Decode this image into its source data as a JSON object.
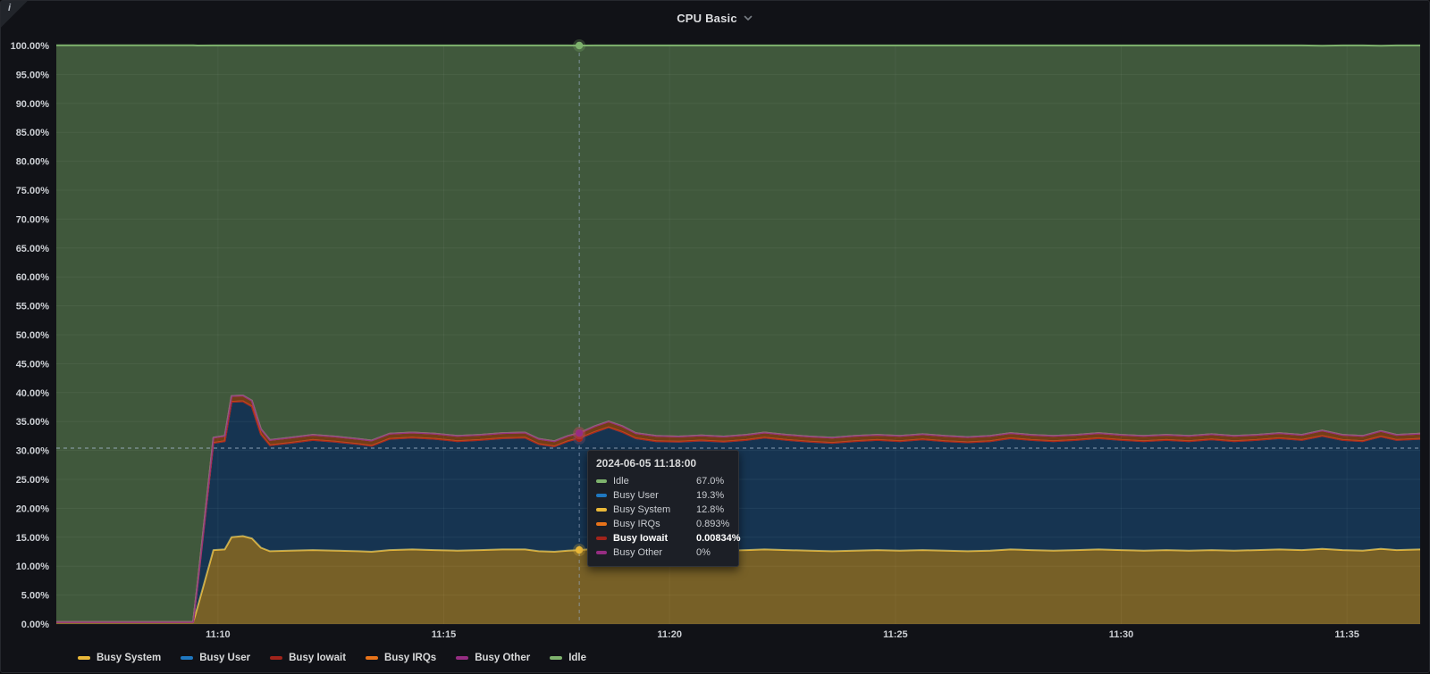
{
  "panel": {
    "title": "CPU Basic",
    "info_icon": "i"
  },
  "tooltip": {
    "timestamp": "2024-06-05 11:18:00",
    "rows": [
      {
        "label": "Idle",
        "value": "67.0%",
        "color": "#7EB26D",
        "bold": false
      },
      {
        "label": "Busy User",
        "value": "19.3%",
        "color": "#1F78C1",
        "bold": false
      },
      {
        "label": "Busy System",
        "value": "12.8%",
        "color": "#EAB839",
        "bold": false
      },
      {
        "label": "Busy IRQs",
        "value": "0.893%",
        "color": "#E8731A",
        "bold": false
      },
      {
        "label": "Busy Iowait",
        "value": "0.00834%",
        "color": "#A1241B",
        "bold": true
      },
      {
        "label": "Busy Other",
        "value": "0%",
        "color": "#962D82",
        "bold": false
      }
    ]
  },
  "legend": {
    "items": [
      {
        "label": "Busy System",
        "color": "#EAB839"
      },
      {
        "label": "Busy User",
        "color": "#1F78C1"
      },
      {
        "label": "Busy Iowait",
        "color": "#A1241B"
      },
      {
        "label": "Busy IRQs",
        "color": "#E8731A"
      },
      {
        "label": "Busy Other",
        "color": "#962D82"
      },
      {
        "label": "Idle",
        "color": "#7EB26D"
      }
    ]
  },
  "chart_data": {
    "type": "area",
    "stacked": true,
    "unit": "percent",
    "ylim": [
      0,
      100
    ],
    "grid": true,
    "y_ticks": [
      "0.00%",
      "5.00%",
      "10.00%",
      "15.00%",
      "20.00%",
      "25.00%",
      "30.00%",
      "35.00%",
      "40.00%",
      "45.00%",
      "50.00%",
      "55.00%",
      "60.00%",
      "65.00%",
      "70.00%",
      "75.00%",
      "80.00%",
      "85.00%",
      "90.00%",
      "95.00%",
      "100.00%"
    ],
    "x_ticks": [
      {
        "label": "11:10",
        "minutes": 10
      },
      {
        "label": "11:15",
        "minutes": 15
      },
      {
        "label": "11:20",
        "minutes": 20
      },
      {
        "label": "11:25",
        "minutes": 25
      },
      {
        "label": "11:30",
        "minutes": 30
      },
      {
        "label": "11:35",
        "minutes": 35
      }
    ],
    "x_range_minutes": [
      6.42,
      36.62
    ],
    "x": [
      6.42,
      9.45,
      9.55,
      9.9,
      10.15,
      10.3,
      10.55,
      10.75,
      10.95,
      11.15,
      11.6,
      12.1,
      12.6,
      13.1,
      13.4,
      13.8,
      14.3,
      14.8,
      15.3,
      15.8,
      16.3,
      16.8,
      17.1,
      17.45,
      17.75,
      18.0,
      18.35,
      18.65,
      18.95,
      19.25,
      19.7,
      20.2,
      20.7,
      21.2,
      21.7,
      22.1,
      22.6,
      23.1,
      23.6,
      24.1,
      24.6,
      25.1,
      25.6,
      26.1,
      26.6,
      27.1,
      27.55,
      28.0,
      28.5,
      29.0,
      29.5,
      30.0,
      30.5,
      31.0,
      31.5,
      32.0,
      32.5,
      33.0,
      33.5,
      34.0,
      34.45,
      34.9,
      35.35,
      35.75,
      36.1,
      36.62
    ],
    "series": [
      {
        "name": "Busy System",
        "color": "#EAB839",
        "fill_opacity": 0.47,
        "values": [
          0.3,
          0.3,
          3,
          12.8,
          12.9,
          15.0,
          15.2,
          14.8,
          13.2,
          12.6,
          12.7,
          12.8,
          12.7,
          12.6,
          12.5,
          12.8,
          12.9,
          12.8,
          12.7,
          12.8,
          12.9,
          12.9,
          12.6,
          12.5,
          12.7,
          12.8,
          13.0,
          13.2,
          13.0,
          12.8,
          12.7,
          12.7,
          12.8,
          12.7,
          12.8,
          12.9,
          12.8,
          12.7,
          12.6,
          12.7,
          12.8,
          12.7,
          12.8,
          12.7,
          12.6,
          12.7,
          12.9,
          12.8,
          12.7,
          12.8,
          12.9,
          12.8,
          12.7,
          12.8,
          12.7,
          12.8,
          12.7,
          12.8,
          12.9,
          12.8,
          13.0,
          12.8,
          12.7,
          13.0,
          12.8,
          12.9
        ]
      },
      {
        "name": "Busy User",
        "color": "#1F78C1",
        "fill_opacity": 0.34,
        "values": [
          0.05,
          0.05,
          4,
          18.5,
          18.7,
          23.4,
          23.3,
          22.8,
          19.6,
          18.3,
          18.6,
          19.0,
          18.8,
          18.5,
          18.3,
          19.2,
          19.3,
          19.2,
          18.9,
          19.0,
          19.2,
          19.3,
          18.5,
          18.2,
          18.9,
          19.3,
          20.2,
          20.8,
          20.2,
          19.3,
          18.9,
          18.8,
          18.9,
          18.8,
          19.0,
          19.3,
          19.0,
          18.8,
          18.7,
          18.9,
          19.0,
          18.9,
          19.1,
          18.9,
          18.8,
          18.9,
          19.2,
          19.0,
          18.9,
          19.0,
          19.2,
          19.0,
          18.9,
          19.0,
          18.9,
          19.1,
          18.9,
          19.0,
          19.2,
          19.0,
          19.5,
          19.0,
          18.9,
          19.4,
          19.0,
          19.1
        ]
      },
      {
        "name": "Busy Iowait",
        "color": "#A1241B",
        "fill_opacity": 0.4,
        "values": [
          0,
          0,
          0.005,
          0.008,
          0.008,
          0.008,
          0.008,
          0.008,
          0.008,
          0.008,
          0.008,
          0.008,
          0.008,
          0.008,
          0.008,
          0.008,
          0.008,
          0.008,
          0.008,
          0.008,
          0.008,
          0.008,
          0.008,
          0.008,
          0.008,
          0.00834,
          0.008,
          0.008,
          0.008,
          0.008,
          0.008,
          0.008,
          0.008,
          0.008,
          0.008,
          0.008,
          0.008,
          0.008,
          0.008,
          0.008,
          0.008,
          0.008,
          0.008,
          0.008,
          0.008,
          0.008,
          0.008,
          0.008,
          0.008,
          0.008,
          0.008,
          0.008,
          0.008,
          0.008,
          0.008,
          0.008,
          0.008,
          0.008,
          0.008,
          0.008,
          0.008,
          0.008,
          0.008,
          0.008,
          0.008,
          0.008
        ]
      },
      {
        "name": "Busy IRQs",
        "color": "#E8731A",
        "fill_opacity": 0.45,
        "values": [
          0,
          0,
          0.2,
          0.9,
          0.9,
          1.0,
          1.0,
          1.0,
          0.9,
          0.9,
          0.9,
          0.9,
          0.9,
          0.9,
          0.9,
          0.9,
          0.9,
          0.9,
          0.9,
          0.9,
          0.9,
          0.9,
          0.9,
          0.9,
          0.9,
          0.893,
          1.0,
          1.0,
          1.0,
          0.9,
          0.9,
          0.9,
          0.9,
          0.9,
          0.9,
          0.9,
          0.9,
          0.9,
          0.9,
          0.9,
          0.9,
          0.9,
          0.9,
          0.9,
          0.9,
          0.9,
          0.9,
          0.9,
          0.9,
          0.9,
          0.9,
          0.9,
          0.9,
          0.9,
          0.9,
          0.9,
          0.9,
          0.9,
          0.9,
          0.9,
          0.95,
          0.9,
          0.9,
          0.95,
          0.9,
          0.9
        ]
      },
      {
        "name": "Busy Other",
        "color": "#962D82",
        "fill_opacity": 0.4,
        "values": [
          0,
          0,
          0,
          0,
          0,
          0,
          0,
          0,
          0,
          0,
          0,
          0,
          0,
          0,
          0,
          0,
          0,
          0,
          0,
          0,
          0,
          0,
          0,
          0,
          0,
          0,
          0,
          0,
          0,
          0,
          0,
          0,
          0,
          0,
          0,
          0,
          0,
          0,
          0,
          0,
          0,
          0,
          0,
          0,
          0,
          0,
          0,
          0,
          0,
          0,
          0,
          0,
          0,
          0,
          0,
          0,
          0,
          0,
          0,
          0,
          0,
          0,
          0,
          0,
          0,
          0
        ]
      },
      {
        "name": "Idle",
        "color": "#7EB26D",
        "fill_opacity": 0.44,
        "values": [
          99.7,
          99.7,
          92.8,
          67.8,
          67.5,
          60.6,
          60.5,
          61.4,
          66.3,
          68.2,
          67.8,
          67.3,
          67.6,
          68.0,
          68.3,
          67.1,
          66.9,
          67.1,
          67.5,
          67.3,
          67.0,
          66.9,
          68.0,
          68.4,
          67.5,
          67.0,
          65.8,
          65.0,
          65.8,
          67.0,
          67.5,
          67.6,
          67.4,
          67.6,
          67.3,
          66.9,
          67.3,
          67.6,
          67.8,
          67.5,
          67.3,
          67.5,
          67.2,
          67.5,
          67.7,
          67.5,
          67.0,
          67.3,
          67.5,
          67.3,
          67.0,
          67.3,
          67.5,
          67.3,
          67.5,
          67.2,
          67.5,
          67.3,
          67.0,
          67.3,
          66.5,
          67.3,
          67.5,
          66.6,
          67.3,
          67.1
        ]
      }
    ],
    "hover": {
      "index": 25,
      "time_label": "2024-06-05 11:18:00",
      "crosshair_percent": 30.4
    }
  }
}
